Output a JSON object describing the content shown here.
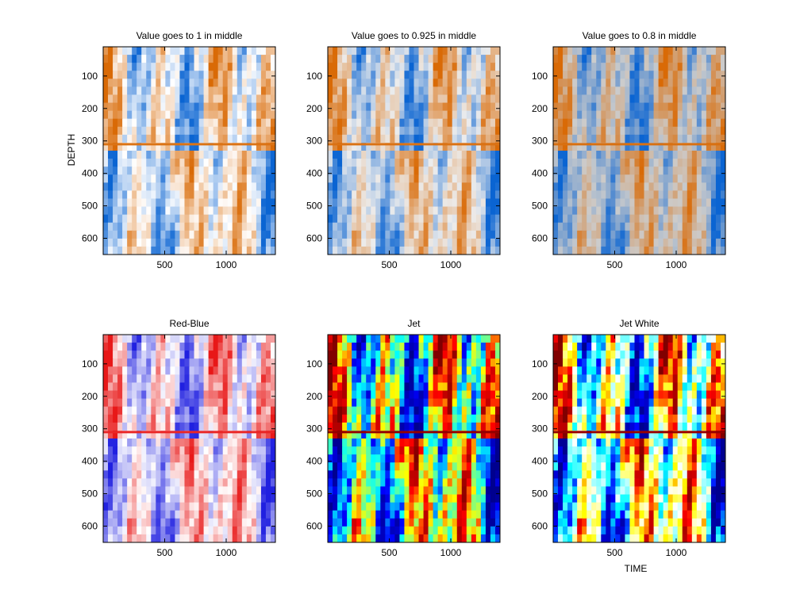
{
  "figure": {
    "xlabel": "TIME",
    "ylabel": "DEPTH"
  },
  "chart_data": [
    {
      "type": "heatmap",
      "title": "Value goes to 1 in middle",
      "colormap": "blue-white-orange",
      "colors": [
        "#0a64d2",
        "#ffffff",
        "#d96a06"
      ],
      "xlabel": "",
      "ylabel": "DEPTH",
      "xlim": [
        0,
        1400
      ],
      "ylim": [
        650,
        10
      ],
      "xticks": [
        500,
        1000
      ],
      "yticks": [
        100,
        200,
        300,
        400,
        500,
        600
      ]
    },
    {
      "type": "heatmap",
      "title": "Value goes to 0.925 in middle",
      "colormap": "blue-lightgray-orange",
      "colors": [
        "#0a64d2",
        "#ececec",
        "#d96a06"
      ],
      "xlabel": "",
      "ylabel": "",
      "xlim": [
        0,
        1400
      ],
      "ylim": [
        650,
        10
      ],
      "xticks": [
        500,
        1000
      ],
      "yticks": [
        100,
        200,
        300,
        400,
        500,
        600
      ]
    },
    {
      "type": "heatmap",
      "title": "Value goes to 0.8 in middle",
      "colormap": "blue-gray-orange",
      "colors": [
        "#0a64d2",
        "#cccccc",
        "#d96a06"
      ],
      "xlabel": "",
      "ylabel": "",
      "xlim": [
        0,
        1400
      ],
      "ylim": [
        650,
        10
      ],
      "xticks": [
        500,
        1000
      ],
      "yticks": [
        100,
        200,
        300,
        400,
        500,
        600
      ]
    },
    {
      "type": "heatmap",
      "title": "Red-Blue",
      "colormap": "red-blue",
      "colors": [
        "#2020e0",
        "#ffffff",
        "#e81818"
      ],
      "xlabel": "",
      "ylabel": "",
      "xlim": [
        0,
        1400
      ],
      "ylim": [
        650,
        10
      ],
      "xticks": [
        500,
        1000
      ],
      "yticks": [
        100,
        200,
        300,
        400,
        500,
        600
      ]
    },
    {
      "type": "heatmap",
      "title": "Jet",
      "colormap": "jet",
      "colors": [
        "#00008f",
        "#0000ff",
        "#00ffff",
        "#ffff00",
        "#ff0000",
        "#800000"
      ],
      "xlabel": "",
      "ylabel": "",
      "xlim": [
        0,
        1400
      ],
      "ylim": [
        650,
        10
      ],
      "xticks": [
        500,
        1000
      ],
      "yticks": [
        100,
        200,
        300,
        400,
        500,
        600
      ]
    },
    {
      "type": "heatmap",
      "title": "Jet White",
      "colormap": "jet-white",
      "colors": [
        "#00008f",
        "#0000ff",
        "#00ffff",
        "#ffffff",
        "#ffff00",
        "#ff0000",
        "#800000"
      ],
      "xlabel": "TIME",
      "ylabel": "",
      "xlim": [
        0,
        1400
      ],
      "ylim": [
        650,
        10
      ],
      "xticks": [
        500,
        1000
      ],
      "yticks": [
        100,
        200,
        300,
        400,
        500,
        600
      ]
    }
  ]
}
